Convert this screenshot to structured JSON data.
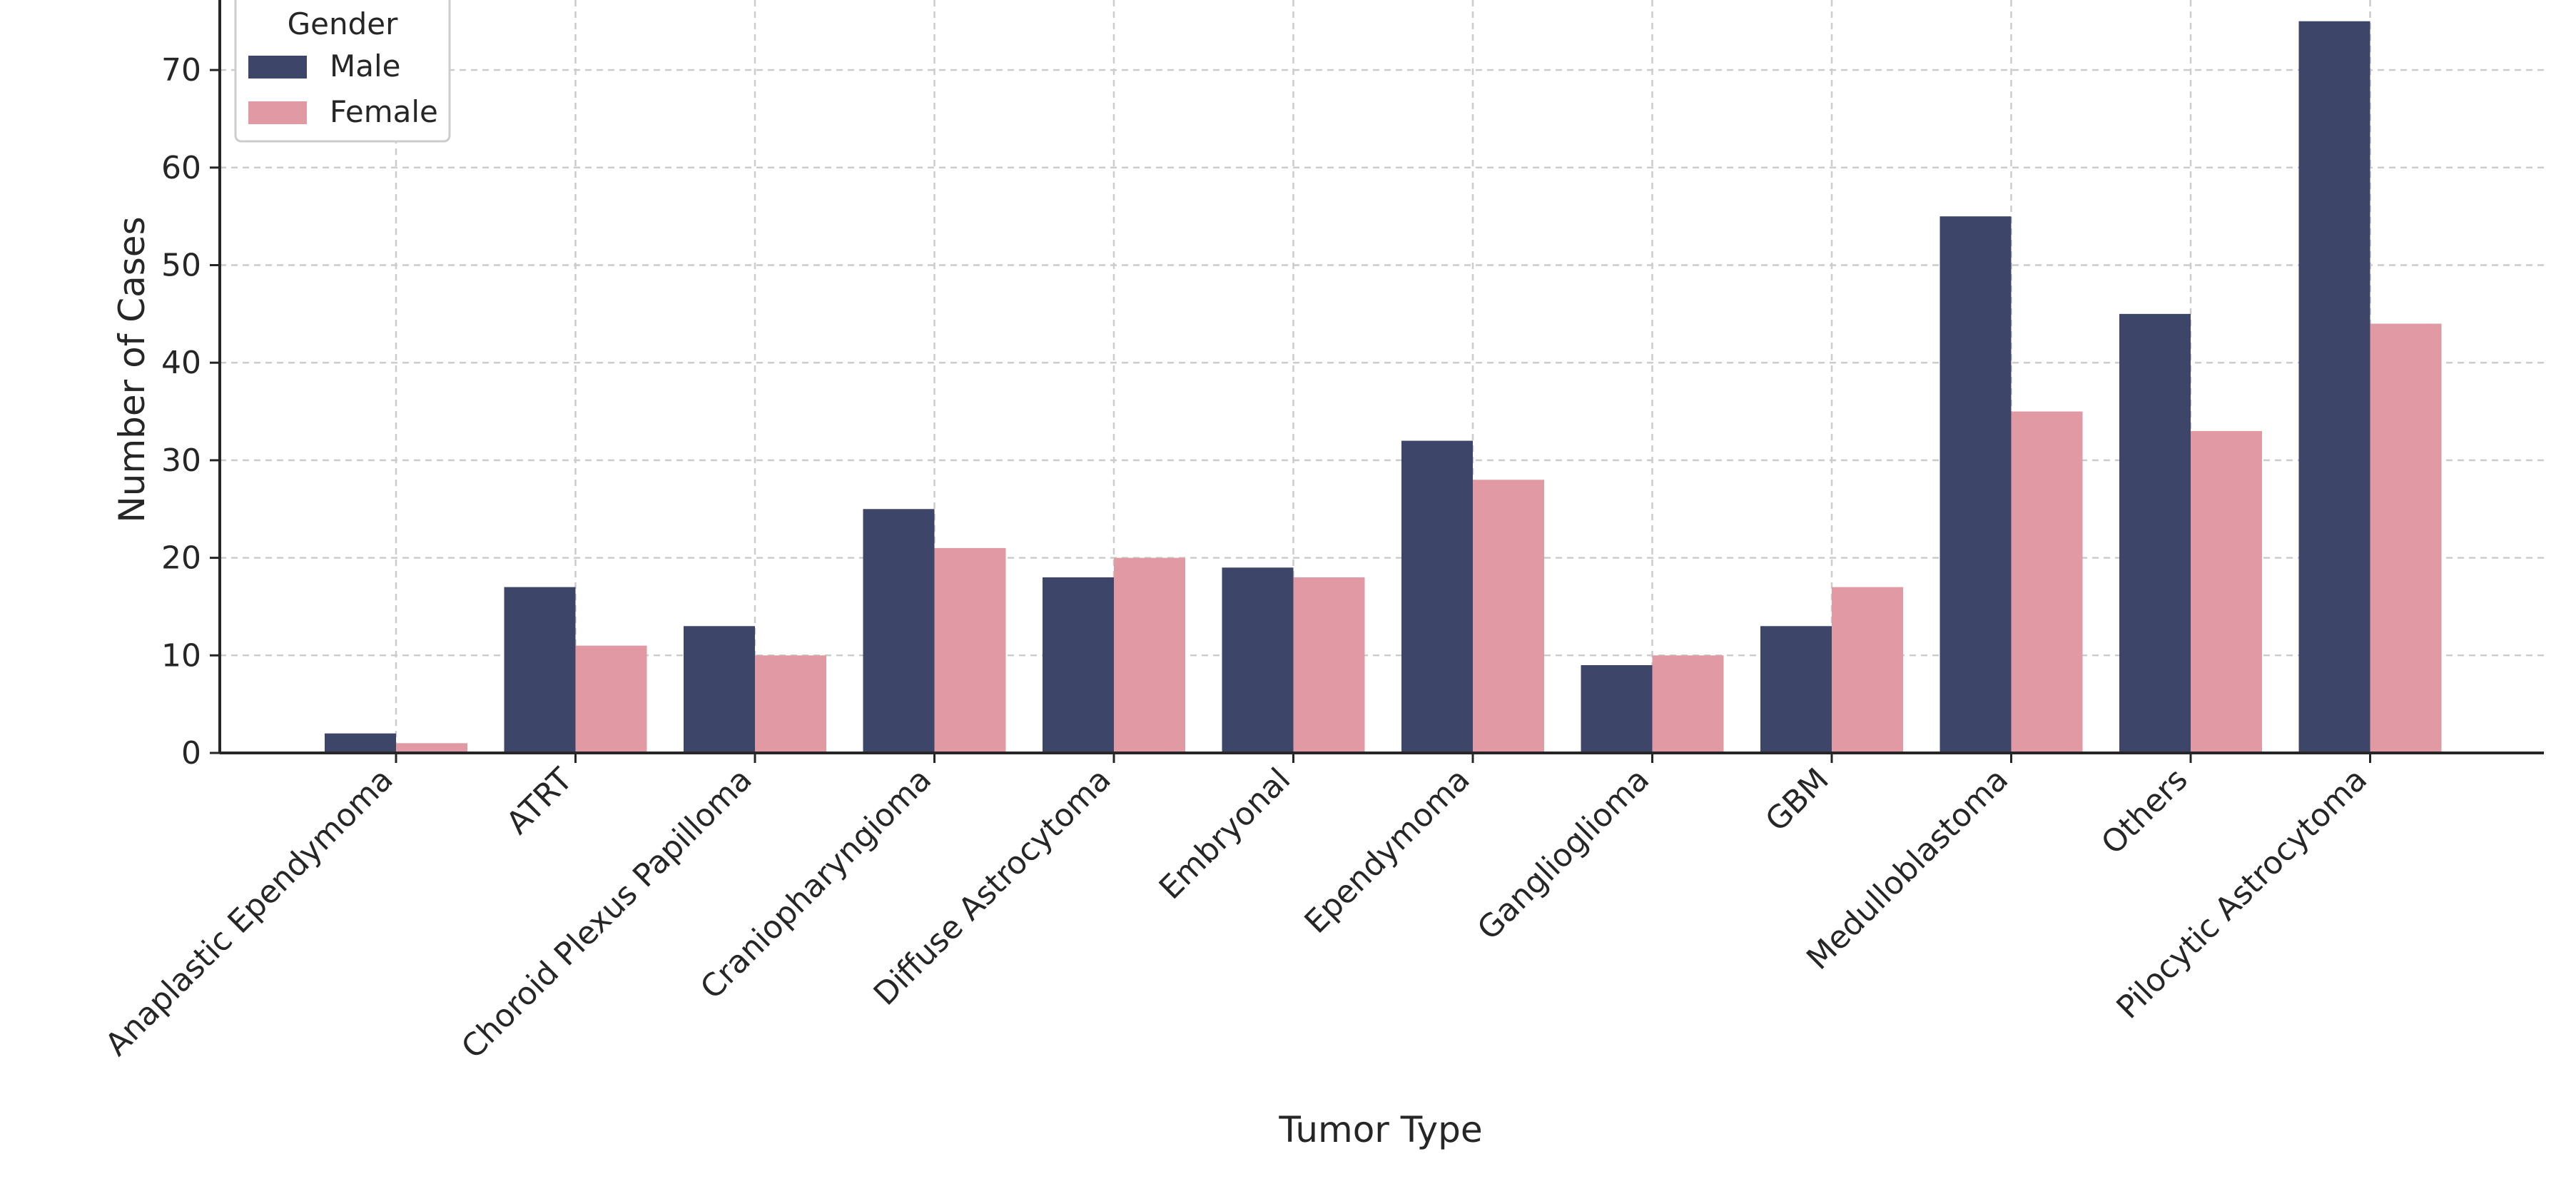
{
  "chart_data": {
    "type": "bar",
    "xlabel": "Tumor Type",
    "ylabel": "Number of Cases",
    "categories": [
      "Anaplastic Ependymoma",
      "ATRT",
      "Choroid Plexus Papilloma",
      "Craniopharyngioma",
      "Diffuse Astrocytoma",
      "Embryonal",
      "Ependymoma",
      "Ganglioglioma",
      "GBM",
      "Medulloblastoma",
      "Others",
      "Pilocytic Astrocytoma"
    ],
    "series": [
      {
        "name": "Male",
        "color": "#3d4668",
        "values": [
          2,
          17,
          13,
          25,
          18,
          19,
          32,
          9,
          13,
          55,
          45,
          75
        ]
      },
      {
        "name": "Female",
        "color": "#e19aa4",
        "values": [
          1,
          11,
          10,
          21,
          20,
          18,
          28,
          10,
          17,
          35,
          33,
          44
        ]
      }
    ],
    "yticks": [
      0,
      10,
      20,
      30,
      40,
      50,
      60,
      70
    ],
    "ylim": [
      0,
      77
    ],
    "grid": true,
    "legend": {
      "title": "Gender",
      "position": "top-left"
    }
  }
}
